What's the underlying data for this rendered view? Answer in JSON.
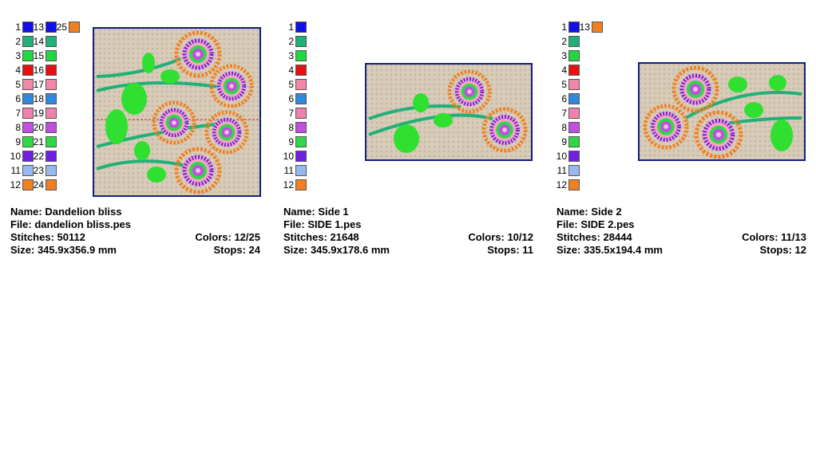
{
  "panels": [
    {
      "color_list": [
        {
          "number": "1",
          "color": "#1010e8"
        },
        {
          "number": "2",
          "color": "#20b078"
        },
        {
          "number": "3",
          "color": "#20d840"
        },
        {
          "number": "4",
          "color": "#e81010"
        },
        {
          "number": "5",
          "color": "#f088a8"
        },
        {
          "number": "6",
          "color": "#3088e0"
        },
        {
          "number": "7",
          "color": "#f080b0"
        },
        {
          "number": "8",
          "color": "#c050e0"
        },
        {
          "number": "9",
          "color": "#30d848"
        },
        {
          "number": "10",
          "color": "#7020e0"
        },
        {
          "number": "11",
          "color": "#98b8f0"
        },
        {
          "number": "12",
          "color": "#f08020"
        },
        {
          "number": "13",
          "color": "#1010e8"
        },
        {
          "number": "14",
          "color": "#20b078"
        },
        {
          "number": "15",
          "color": "#20d840"
        },
        {
          "number": "16",
          "color": "#e81010"
        },
        {
          "number": "17",
          "color": "#f088a8"
        },
        {
          "number": "18",
          "color": "#3088e0"
        },
        {
          "number": "19",
          "color": "#f080b0"
        },
        {
          "number": "20",
          "color": "#c050e0"
        },
        {
          "number": "21",
          "color": "#30d848"
        },
        {
          "number": "22",
          "color": "#7020e0"
        },
        {
          "number": "23",
          "color": "#98b8f0"
        },
        {
          "number": "24",
          "color": "#f08020"
        },
        {
          "number": "25",
          "color": "#f08020"
        }
      ],
      "name": "Name: Dandelion bliss",
      "file": "File: dandelion bliss.pes",
      "stitches": "Stitches: 50112",
      "size": "Size: 345.9x356.9 mm",
      "colors": "Colors: 12/25",
      "stops": "Stops: 24"
    },
    {
      "color_list": [
        {
          "number": "1",
          "color": "#1010e8"
        },
        {
          "number": "2",
          "color": "#20b078"
        },
        {
          "number": "3",
          "color": "#20d840"
        },
        {
          "number": "4",
          "color": "#e81010"
        },
        {
          "number": "5",
          "color": "#f088a8"
        },
        {
          "number": "6",
          "color": "#3088e0"
        },
        {
          "number": "7",
          "color": "#f080b0"
        },
        {
          "number": "8",
          "color": "#c050e0"
        },
        {
          "number": "9",
          "color": "#30d848"
        },
        {
          "number": "10",
          "color": "#7020e0"
        },
        {
          "number": "11",
          "color": "#98b8f0"
        },
        {
          "number": "12",
          "color": "#f08020"
        }
      ],
      "name": "Name: Side 1",
      "file": "File: SIDE 1.pes",
      "stitches": "Stitches: 21648",
      "size": "Size: 345.9x178.6 mm",
      "colors": "Colors: 10/12",
      "stops": "Stops: 11"
    },
    {
      "color_list": [
        {
          "number": "1",
          "color": "#1010e8"
        },
        {
          "number": "2",
          "color": "#20b078"
        },
        {
          "number": "3",
          "color": "#20d840"
        },
        {
          "number": "4",
          "color": "#e81010"
        },
        {
          "number": "5",
          "color": "#f088a8"
        },
        {
          "number": "6",
          "color": "#3088e0"
        },
        {
          "number": "7",
          "color": "#f080b0"
        },
        {
          "number": "8",
          "color": "#c050e0"
        },
        {
          "number": "9",
          "color": "#30d848"
        },
        {
          "number": "10",
          "color": "#7020e0"
        },
        {
          "number": "11",
          "color": "#98b8f0"
        },
        {
          "number": "12",
          "color": "#f08020"
        },
        {
          "number": "13",
          "color": "#f08020"
        }
      ],
      "name": "Name: Side 2",
      "file": "File: SIDE 2.pes",
      "stitches": "Stitches: 28444",
      "size": "Size: 335.5x194.4 mm",
      "colors": "Colors: 11/13",
      "stops": "Stops: 12"
    }
  ]
}
